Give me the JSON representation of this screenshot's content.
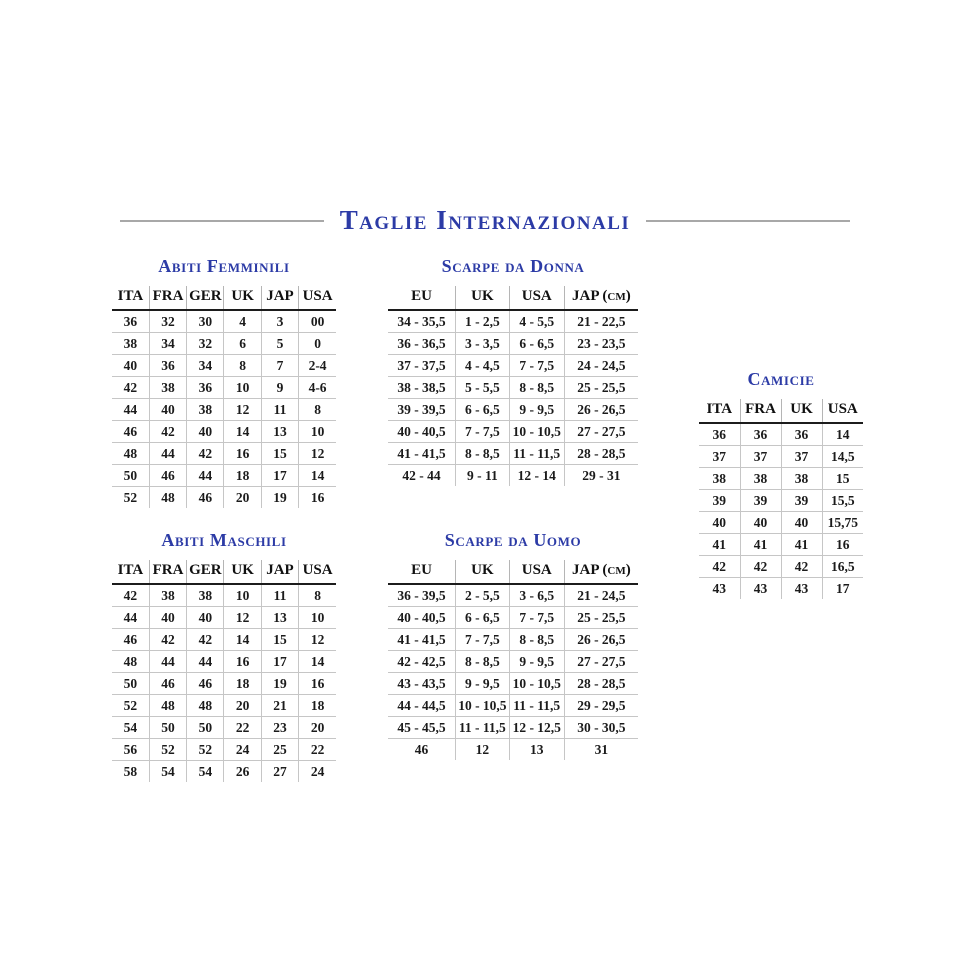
{
  "page": {
    "title": "Taglie Internazionali",
    "accent_color": "#2c3ba6"
  },
  "tables": {
    "abiti_femminili": {
      "title": "Abiti Femminili",
      "headers": [
        "ITA",
        "FRA",
        "GER",
        "UK",
        "JAP",
        "USA"
      ],
      "rows": [
        [
          "36",
          "32",
          "30",
          "4",
          "3",
          "00"
        ],
        [
          "38",
          "34",
          "32",
          "6",
          "5",
          "0"
        ],
        [
          "40",
          "36",
          "34",
          "8",
          "7",
          "2-4"
        ],
        [
          "42",
          "38",
          "36",
          "10",
          "9",
          "4-6"
        ],
        [
          "44",
          "40",
          "38",
          "12",
          "11",
          "8"
        ],
        [
          "46",
          "42",
          "40",
          "14",
          "13",
          "10"
        ],
        [
          "48",
          "44",
          "42",
          "16",
          "15",
          "12"
        ],
        [
          "50",
          "46",
          "44",
          "18",
          "17",
          "14"
        ],
        [
          "52",
          "48",
          "46",
          "20",
          "19",
          "16"
        ]
      ]
    },
    "abiti_maschili": {
      "title": "Abiti Maschili",
      "headers": [
        "ITA",
        "FRA",
        "GER",
        "UK",
        "JAP",
        "USA"
      ],
      "rows": [
        [
          "42",
          "38",
          "38",
          "10",
          "11",
          "8"
        ],
        [
          "44",
          "40",
          "40",
          "12",
          "13",
          "10"
        ],
        [
          "46",
          "42",
          "42",
          "14",
          "15",
          "12"
        ],
        [
          "48",
          "44",
          "44",
          "16",
          "17",
          "14"
        ],
        [
          "50",
          "46",
          "46",
          "18",
          "19",
          "16"
        ],
        [
          "52",
          "48",
          "48",
          "20",
          "21",
          "18"
        ],
        [
          "54",
          "50",
          "50",
          "22",
          "23",
          "20"
        ],
        [
          "56",
          "52",
          "52",
          "24",
          "25",
          "22"
        ],
        [
          "58",
          "54",
          "54",
          "26",
          "27",
          "24"
        ]
      ]
    },
    "scarpe_da_donna": {
      "title": "Scarpe da Donna",
      "headers": [
        "EU",
        "UK",
        "USA",
        "JAP (cm)"
      ],
      "rows": [
        [
          "34 - 35,5",
          "1 - 2,5",
          "4 - 5,5",
          "21 - 22,5"
        ],
        [
          "36 - 36,5",
          "3 - 3,5",
          "6 - 6,5",
          "23 - 23,5"
        ],
        [
          "37 - 37,5",
          "4 - 4,5",
          "7 - 7,5",
          "24 - 24,5"
        ],
        [
          "38 - 38,5",
          "5 - 5,5",
          "8 - 8,5",
          "25 - 25,5"
        ],
        [
          "39 - 39,5",
          "6 - 6,5",
          "9 - 9,5",
          "26 - 26,5"
        ],
        [
          "40 - 40,5",
          "7 - 7,5",
          "10 - 10,5",
          "27 - 27,5"
        ],
        [
          "41 - 41,5",
          "8 - 8,5",
          "11 - 11,5",
          "28 - 28,5"
        ],
        [
          "42 - 44",
          "9 - 11",
          "12 - 14",
          "29 - 31"
        ]
      ]
    },
    "scarpe_da_uomo": {
      "title": "Scarpe da Uomo",
      "headers": [
        "EU",
        "UK",
        "USA",
        "JAP (cm)"
      ],
      "rows": [
        [
          "36 - 39,5",
          "2 - 5,5",
          "3 - 6,5",
          "21 - 24,5"
        ],
        [
          "40 - 40,5",
          "6 - 6,5",
          "7 - 7,5",
          "25 - 25,5"
        ],
        [
          "41 - 41,5",
          "7 - 7,5",
          "8 - 8,5",
          "26 - 26,5"
        ],
        [
          "42 - 42,5",
          "8 - 8,5",
          "9 - 9,5",
          "27 - 27,5"
        ],
        [
          "43 - 43,5",
          "9 - 9,5",
          "10 - 10,5",
          "28 - 28,5"
        ],
        [
          "44 - 44,5",
          "10 - 10,5",
          "11 - 11,5",
          "29 - 29,5"
        ],
        [
          "45 - 45,5",
          "11 - 11,5",
          "12 - 12,5",
          "30 - 30,5"
        ],
        [
          "46",
          "12",
          "13",
          "31"
        ]
      ]
    },
    "camicie": {
      "title": "Camicie",
      "headers": [
        "ITA",
        "FRA",
        "UK",
        "USA"
      ],
      "rows": [
        [
          "36",
          "36",
          "36",
          "14"
        ],
        [
          "37",
          "37",
          "37",
          "14,5"
        ],
        [
          "38",
          "38",
          "38",
          "15"
        ],
        [
          "39",
          "39",
          "39",
          "15,5"
        ],
        [
          "40",
          "40",
          "40",
          "15,75"
        ],
        [
          "41",
          "41",
          "41",
          "16"
        ],
        [
          "42",
          "42",
          "42",
          "16,5"
        ],
        [
          "43",
          "43",
          "43",
          "17"
        ]
      ]
    }
  }
}
